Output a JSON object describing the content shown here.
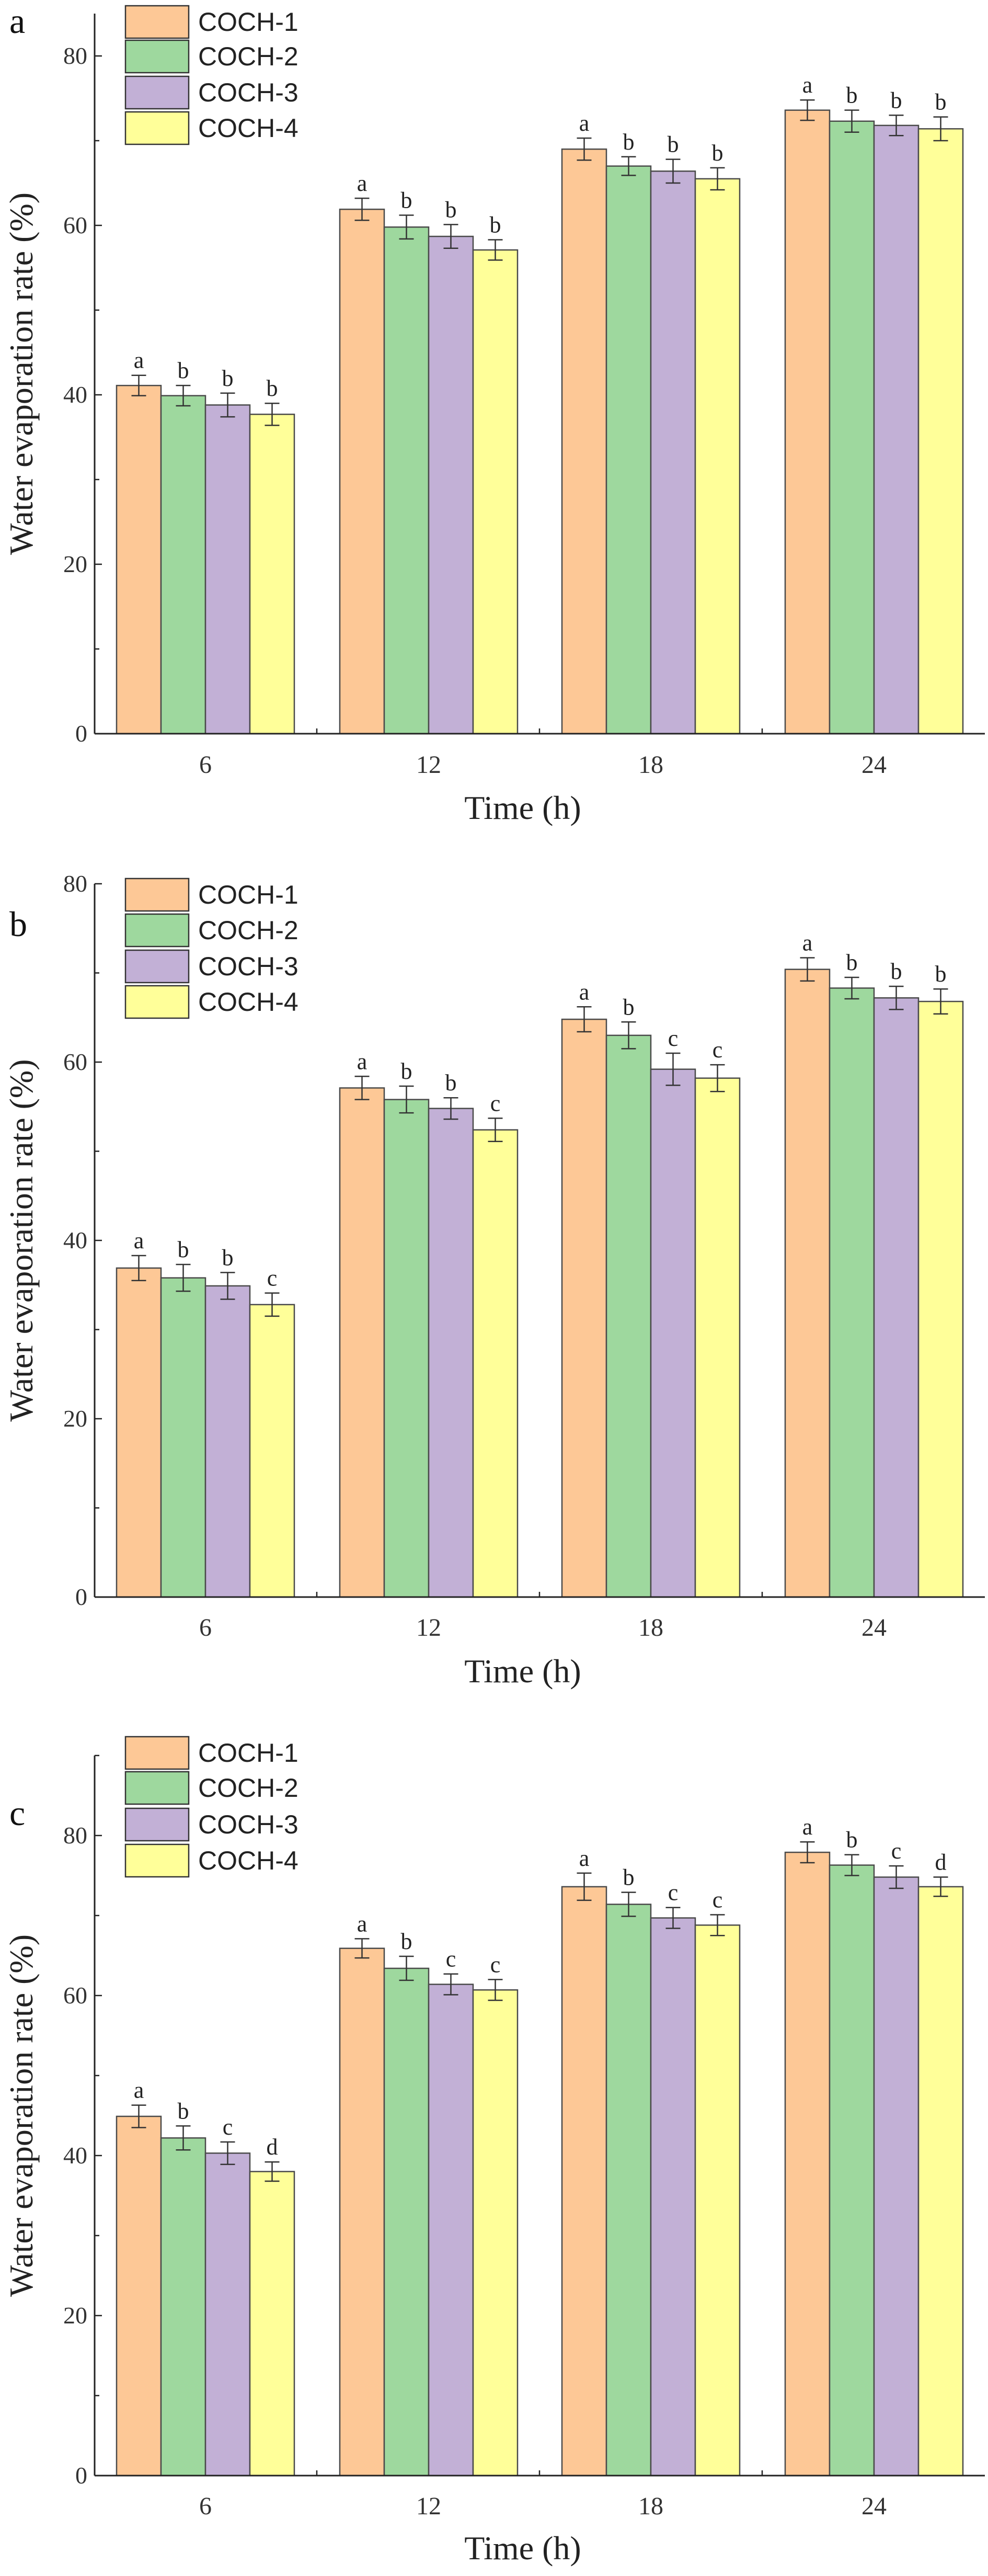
{
  "chart_data": [
    {
      "type": "bar",
      "panel_label": "a",
      "categories": [
        "6",
        "12",
        "18",
        "24"
      ],
      "xlabel": "Time (h)",
      "ylabel": "Water evaporation rate (%)",
      "ylim": [
        0,
        85
      ],
      "yticks": [
        "0",
        "20",
        "40",
        "60",
        "80"
      ],
      "grid": false,
      "legend": "top-left",
      "series": [
        {
          "name": "COCH-1",
          "color": "#FDC896",
          "values": [
            41.1,
            61.9,
            69.0,
            73.6
          ],
          "errors": [
            1.2,
            1.3,
            1.3,
            1.2
          ],
          "letters": [
            "a",
            "a",
            "a",
            "a"
          ]
        },
        {
          "name": "COCH-2",
          "color": "#9ED89E",
          "values": [
            39.9,
            59.8,
            67.0,
            72.3
          ],
          "errors": [
            1.2,
            1.4,
            1.1,
            1.3
          ],
          "letters": [
            "b",
            "b",
            "b",
            "b"
          ]
        },
        {
          "name": "COCH-3",
          "color": "#C2B0D6",
          "values": [
            38.8,
            58.7,
            66.4,
            71.8
          ],
          "errors": [
            1.4,
            1.4,
            1.4,
            1.2
          ],
          "letters": [
            "b",
            "b",
            "b",
            "b"
          ]
        },
        {
          "name": "COCH-4",
          "color": "#FFFF99",
          "values": [
            37.7,
            57.1,
            65.5,
            71.4
          ],
          "errors": [
            1.3,
            1.2,
            1.3,
            1.4
          ],
          "letters": [
            "b",
            "b",
            "b",
            "b"
          ]
        }
      ]
    },
    {
      "type": "bar",
      "panel_label": "b",
      "categories": [
        "6",
        "12",
        "18",
        "24"
      ],
      "xlabel": "Time (h)",
      "ylabel": "Water evaporation rate (%)",
      "ylim": [
        0,
        80
      ],
      "yticks": [
        "0",
        "20",
        "40",
        "60",
        "80"
      ],
      "grid": false,
      "legend": "top-left",
      "series": [
        {
          "name": "COCH-1",
          "color": "#FDC896",
          "values": [
            36.9,
            57.1,
            64.8,
            70.4
          ],
          "errors": [
            1.4,
            1.3,
            1.4,
            1.3
          ],
          "letters": [
            "a",
            "a",
            "a",
            "a"
          ]
        },
        {
          "name": "COCH-2",
          "color": "#9ED89E",
          "values": [
            35.8,
            55.8,
            63.0,
            68.3
          ],
          "errors": [
            1.5,
            1.5,
            1.5,
            1.2
          ],
          "letters": [
            "b",
            "b",
            "b",
            "b"
          ]
        },
        {
          "name": "COCH-3",
          "color": "#C2B0D6",
          "values": [
            34.9,
            54.8,
            59.2,
            67.2
          ],
          "errors": [
            1.5,
            1.2,
            1.8,
            1.3
          ],
          "letters": [
            "b",
            "b",
            "c",
            "b"
          ]
        },
        {
          "name": "COCH-4",
          "color": "#FFFF99",
          "values": [
            32.8,
            52.4,
            58.2,
            66.8
          ],
          "errors": [
            1.3,
            1.3,
            1.5,
            1.4
          ],
          "letters": [
            "c",
            "c",
            "c",
            "b"
          ]
        }
      ]
    },
    {
      "type": "bar",
      "panel_label": "c",
      "categories": [
        "6",
        "12",
        "18",
        "24"
      ],
      "xlabel": "Time (h)",
      "ylabel": "Water evaporation rate (%)",
      "ylim": [
        0,
        90
      ],
      "yticks": [
        "0",
        "20",
        "40",
        "60",
        "80"
      ],
      "grid": false,
      "legend": "top-left",
      "series": [
        {
          "name": "COCH-1",
          "color": "#FDC896",
          "values": [
            44.9,
            65.9,
            73.6,
            77.9
          ],
          "errors": [
            1.4,
            1.2,
            1.7,
            1.3
          ],
          "letters": [
            "a",
            "a",
            "a",
            "a"
          ]
        },
        {
          "name": "COCH-2",
          "color": "#9ED89E",
          "values": [
            42.2,
            63.4,
            71.4,
            76.3
          ],
          "errors": [
            1.5,
            1.5,
            1.5,
            1.3
          ],
          "letters": [
            "b",
            "b",
            "b",
            "b"
          ]
        },
        {
          "name": "COCH-3",
          "color": "#C2B0D6",
          "values": [
            40.3,
            61.4,
            69.7,
            74.8
          ],
          "errors": [
            1.4,
            1.3,
            1.3,
            1.4
          ],
          "letters": [
            "c",
            "c",
            "c",
            "c"
          ]
        },
        {
          "name": "COCH-4",
          "color": "#FFFF99",
          "values": [
            38.0,
            60.7,
            68.8,
            73.6
          ],
          "errors": [
            1.2,
            1.3,
            1.3,
            1.2
          ],
          "letters": [
            "d",
            "c",
            "c",
            "d"
          ]
        }
      ]
    }
  ]
}
